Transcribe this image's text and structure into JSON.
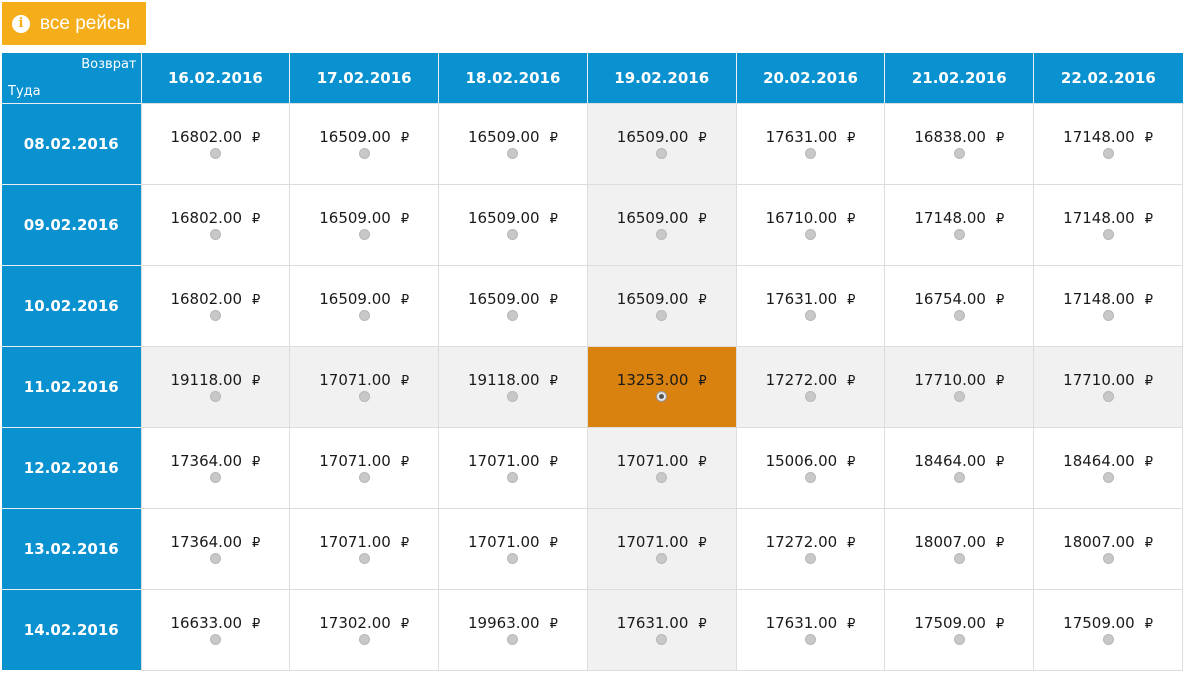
{
  "button": {
    "label": "все рейсы",
    "icon": "info-icon"
  },
  "corner": {
    "return_label": "Возврат",
    "depart_label": "Туда"
  },
  "currency": "₽",
  "columns": [
    "16.02.2016",
    "17.02.2016",
    "18.02.2016",
    "19.02.2016",
    "20.02.2016",
    "21.02.2016",
    "22.02.2016"
  ],
  "rows": [
    {
      "date": "08.02.2016",
      "prices": [
        "16802.00",
        "16509.00",
        "16509.00",
        "16509.00",
        "17631.00",
        "16838.00",
        "17148.00"
      ]
    },
    {
      "date": "09.02.2016",
      "prices": [
        "16802.00",
        "16509.00",
        "16509.00",
        "16509.00",
        "16710.00",
        "17148.00",
        "17148.00"
      ]
    },
    {
      "date": "10.02.2016",
      "prices": [
        "16802.00",
        "16509.00",
        "16509.00",
        "16509.00",
        "17631.00",
        "16754.00",
        "17148.00"
      ]
    },
    {
      "date": "11.02.2016",
      "prices": [
        "19118.00",
        "17071.00",
        "19118.00",
        "13253.00",
        "17272.00",
        "17710.00",
        "17710.00"
      ]
    },
    {
      "date": "12.02.2016",
      "prices": [
        "17364.00",
        "17071.00",
        "17071.00",
        "17071.00",
        "15006.00",
        "18464.00",
        "18464.00"
      ]
    },
    {
      "date": "13.02.2016",
      "prices": [
        "17364.00",
        "17071.00",
        "17071.00",
        "17071.00",
        "17272.00",
        "18007.00",
        "18007.00"
      ]
    },
    {
      "date": "14.02.2016",
      "prices": [
        "16633.00",
        "17302.00",
        "19963.00",
        "17631.00",
        "17631.00",
        "17509.00",
        "17509.00"
      ]
    }
  ],
  "selected": {
    "row": 3,
    "col": 3
  },
  "colors": {
    "header": "#0a91cf",
    "button": "#f6ad1a",
    "selected": "#d9820f",
    "highlight": "#f1f1f1"
  }
}
